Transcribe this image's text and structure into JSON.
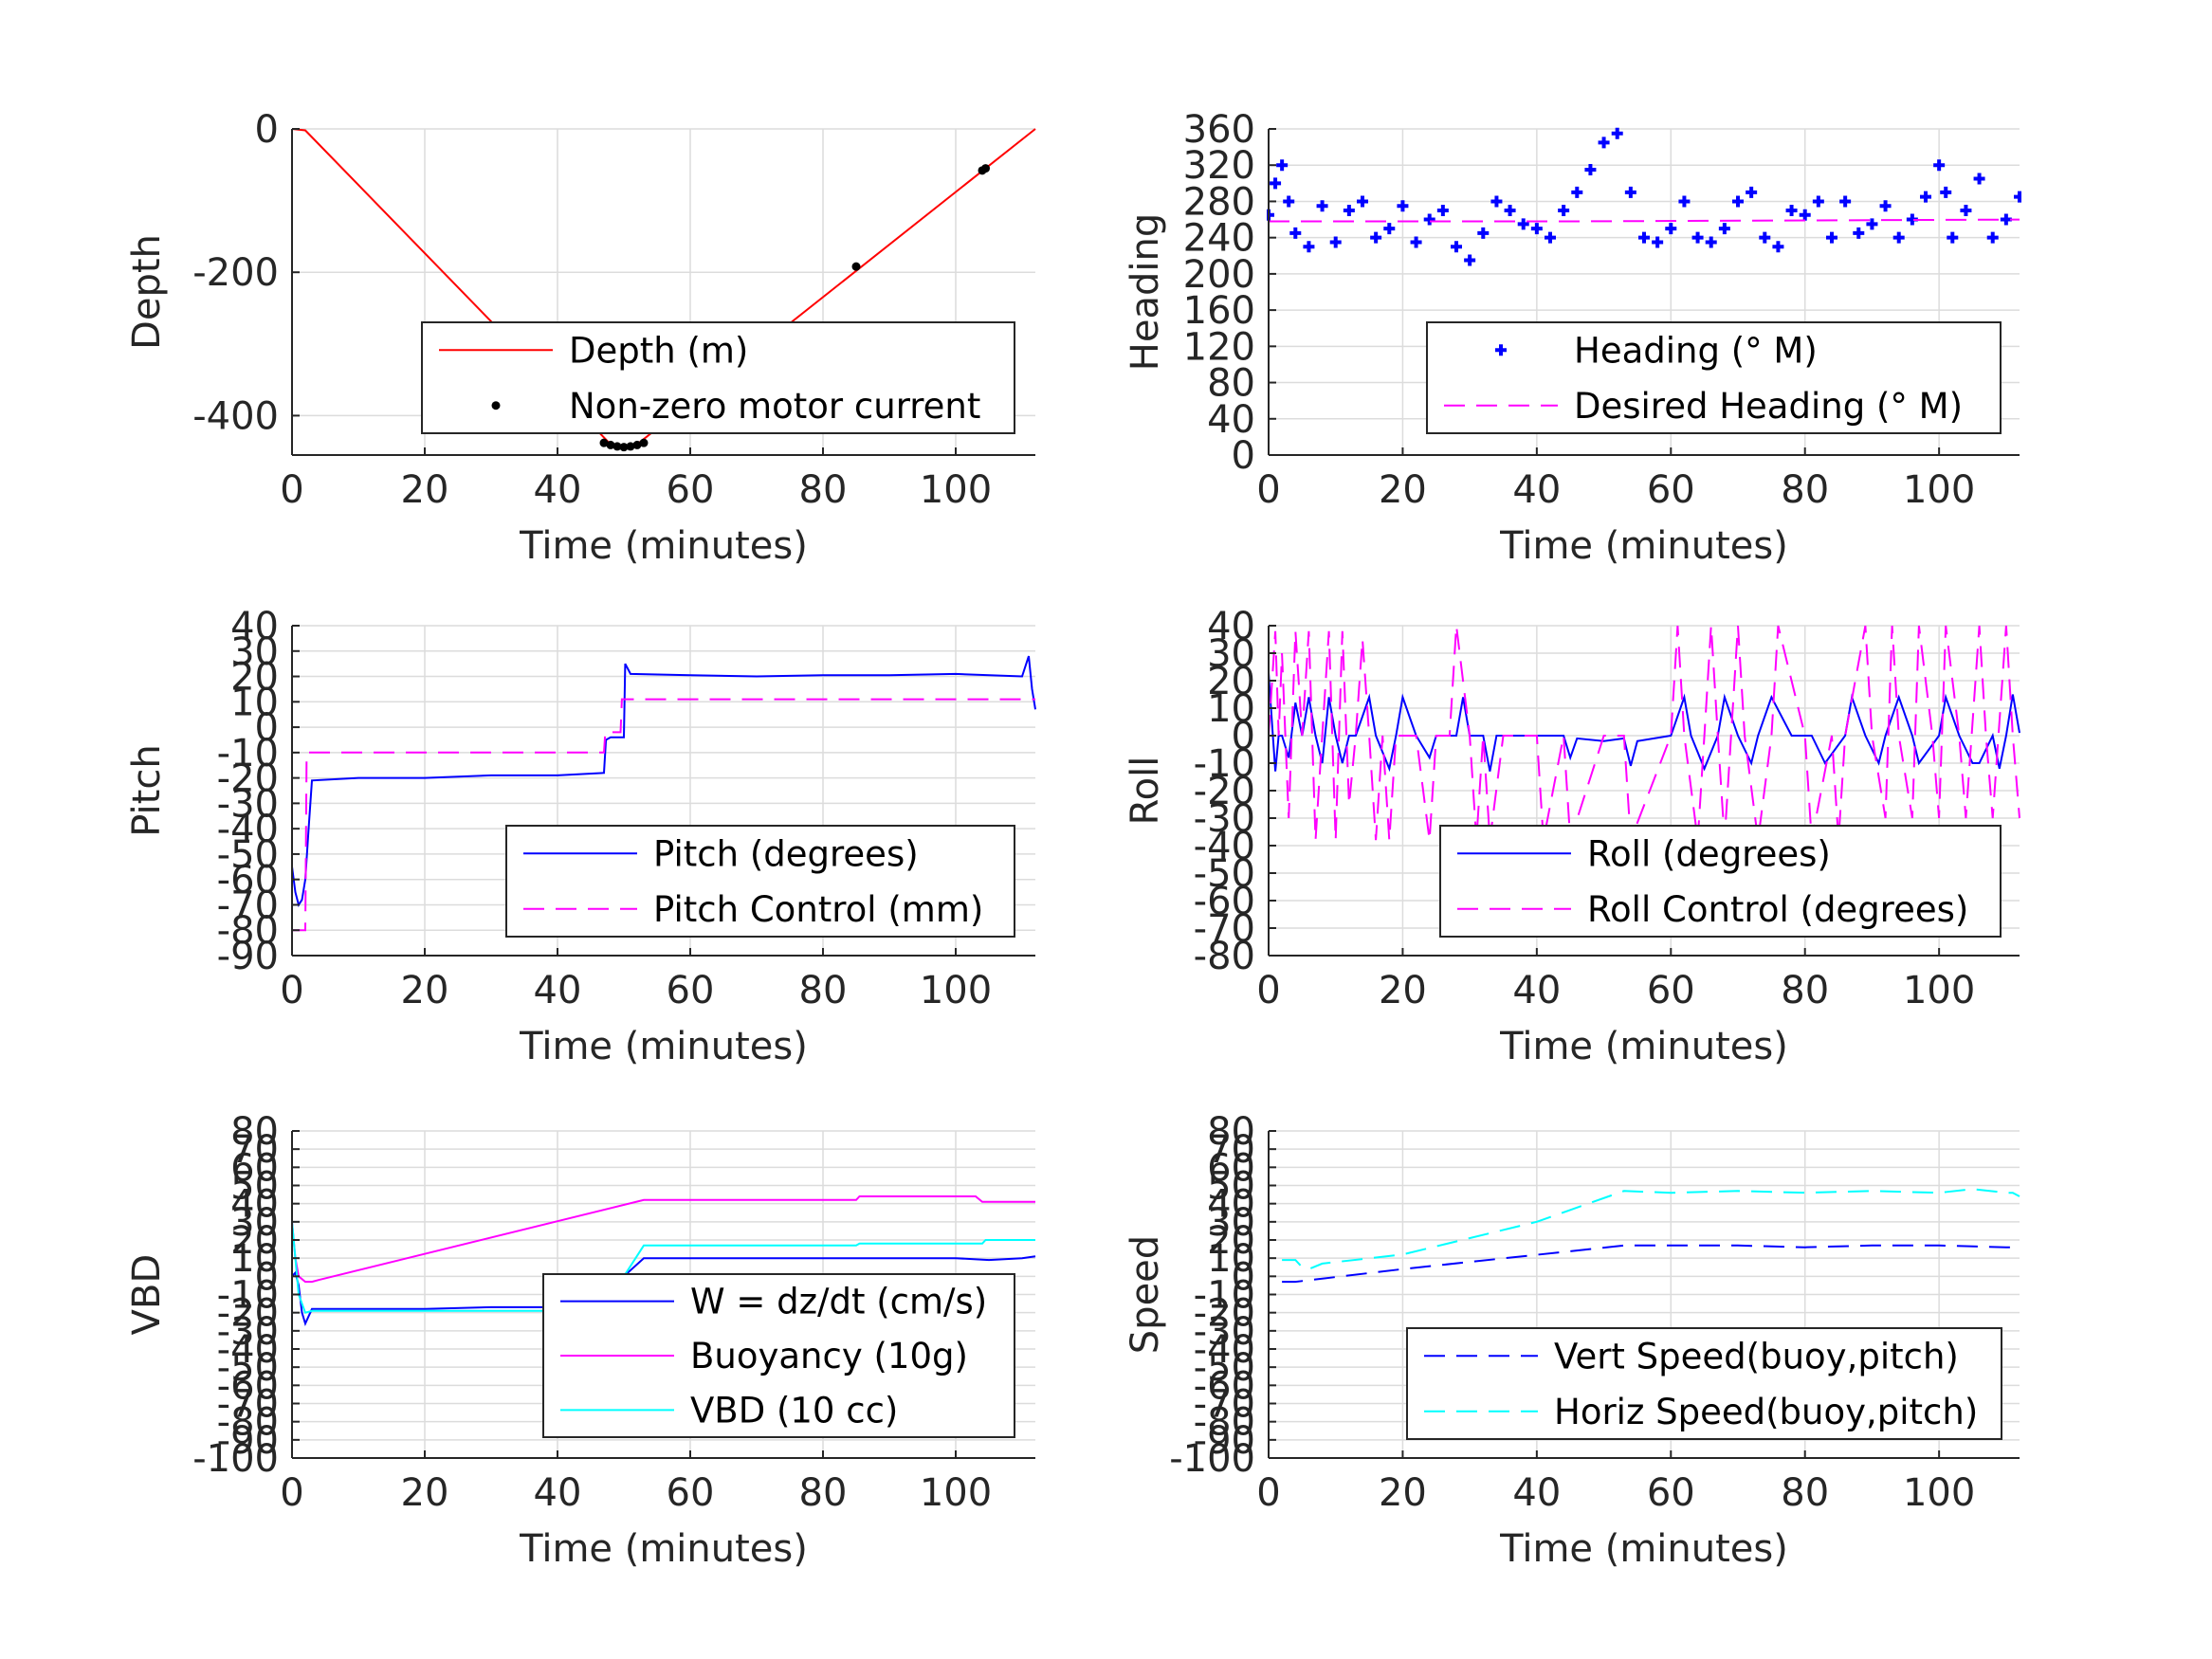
{
  "chart_data": [
    {
      "type": "line",
      "xlabel": "Time (minutes)",
      "ylabel": "Depth",
      "xlim": [
        0,
        112
      ],
      "ylim": [
        -455,
        0
      ],
      "xticks": [
        "0",
        "20",
        "40",
        "60",
        "80",
        "100"
      ],
      "yticks": [
        "0",
        "-200",
        "-400"
      ],
      "grid": true,
      "legend_position": "bottom-right",
      "series": [
        {
          "name": "Depth (m)",
          "style": "solid",
          "color": "#ff0000",
          "x": [
            0,
            2,
            48,
            50,
            52,
            112
          ],
          "y": [
            0,
            -2,
            -440,
            -443,
            -440,
            0
          ]
        },
        {
          "name": "Non-zero motor current",
          "style": "dot",
          "color": "#000000",
          "x": [
            47,
            48,
            49,
            50,
            51,
            52,
            53,
            85,
            104,
            104.5
          ],
          "y": [
            -438,
            -441,
            -443,
            -444,
            -443,
            -441,
            -438,
            -192,
            -58,
            -55
          ]
        }
      ]
    },
    {
      "type": "line",
      "xlabel": "Time (minutes)",
      "ylabel": "Heading",
      "xlim": [
        0,
        112
      ],
      "ylim": [
        0,
        360
      ],
      "xticks": [
        "0",
        "20",
        "40",
        "60",
        "80",
        "100"
      ],
      "yticks": [
        "0",
        "40",
        "80",
        "120",
        "160",
        "200",
        "240",
        "280",
        "320",
        "360"
      ],
      "grid": true,
      "legend_position": "bottom-right",
      "series": [
        {
          "name": "Heading (° M)",
          "style": "plus",
          "color": "#0000ff",
          "x": [
            0,
            1,
            2,
            3,
            4,
            6,
            8,
            10,
            12,
            14,
            16,
            18,
            20,
            22,
            24,
            26,
            28,
            30,
            32,
            34,
            36,
            38,
            40,
            42,
            44,
            46,
            48,
            50,
            52,
            54,
            56,
            58,
            60,
            62,
            64,
            66,
            68,
            70,
            72,
            74,
            76,
            78,
            80,
            82,
            84,
            86,
            88,
            90,
            92,
            94,
            96,
            98,
            100,
            101,
            102,
            104,
            106,
            108,
            110,
            112
          ],
          "y": [
            265,
            300,
            320,
            280,
            245,
            230,
            275,
            235,
            270,
            280,
            240,
            250,
            275,
            235,
            260,
            270,
            230,
            215,
            245,
            280,
            270,
            255,
            250,
            240,
            270,
            290,
            315,
            345,
            355,
            290,
            240,
            235,
            250,
            280,
            240,
            235,
            250,
            280,
            290,
            240,
            230,
            270,
            265,
            280,
            240,
            280,
            245,
            255,
            275,
            240,
            260,
            285,
            320,
            290,
            240,
            270,
            305,
            240,
            260,
            285
          ]
        },
        {
          "name": "Desired Heading (° M)",
          "style": "dashed",
          "color": "#ff00ff",
          "x": [
            0,
            45,
            112
          ],
          "y": [
            258,
            258,
            260
          ]
        }
      ]
    },
    {
      "type": "line",
      "xlabel": "Time (minutes)",
      "ylabel": "Pitch",
      "xlim": [
        0,
        112
      ],
      "ylim": [
        -90,
        40
      ],
      "xticks": [
        "0",
        "20",
        "40",
        "60",
        "80",
        "100"
      ],
      "yticks": [
        "-90",
        "-80",
        "-70",
        "-60",
        "-50",
        "-40",
        "-30",
        "-20",
        "-10",
        "0",
        "10",
        "20",
        "30",
        "40"
      ],
      "grid": true,
      "legend_position": "bottom-right",
      "series": [
        {
          "name": "Pitch (degrees)",
          "style": "solid",
          "color": "#0000ff",
          "x": [
            0,
            0.5,
            1,
            1.5,
            2,
            2.5,
            3,
            10,
            20,
            30,
            40,
            47,
            47.3,
            48,
            49,
            50,
            50.2,
            51,
            60,
            70,
            80,
            90,
            100,
            110,
            111,
            111.5,
            112
          ],
          "y": [
            -55,
            -65,
            -70,
            -68,
            -60,
            -40,
            -21,
            -20,
            -20,
            -19,
            -19,
            -18,
            -5,
            -4,
            -4,
            -4,
            25,
            21,
            20.5,
            20,
            20.5,
            20.5,
            21,
            20,
            28,
            15,
            7
          ]
        },
        {
          "name": "Pitch Control (mm)",
          "style": "dashed",
          "color": "#ff00ff",
          "x": [
            0,
            2,
            2.2,
            47,
            47.2,
            49.5,
            49.7,
            112
          ],
          "y": [
            -80,
            -80,
            -10,
            -10,
            -2,
            -2,
            11,
            11
          ]
        }
      ]
    },
    {
      "type": "line",
      "xlabel": "Time (minutes)",
      "ylabel": "Roll",
      "xlim": [
        0,
        112
      ],
      "ylim": [
        -80,
        40
      ],
      "xticks": [
        "0",
        "20",
        "40",
        "60",
        "80",
        "100"
      ],
      "yticks": [
        "-80",
        "-70",
        "-60",
        "-50",
        "-40",
        "-30",
        "-20",
        "-10",
        "0",
        "10",
        "20",
        "30",
        "40"
      ],
      "grid": true,
      "legend_position": "bottom-right",
      "series": [
        {
          "name": "Roll (degrees)",
          "style": "solid",
          "color": "#0000ff",
          "x": [
            0,
            0.5,
            1,
            1.5,
            2,
            3,
            4,
            5,
            6,
            7,
            8,
            9,
            10,
            11,
            12,
            13,
            15,
            16,
            18,
            19,
            20,
            22,
            24,
            25,
            28,
            29,
            30,
            32,
            33,
            34,
            40,
            44,
            45,
            46,
            50,
            53,
            54,
            55,
            60,
            62,
            63,
            65,
            67,
            68,
            70,
            72,
            73,
            75,
            78,
            80,
            81,
            83,
            86,
            87,
            89,
            91,
            92,
            94,
            96,
            97,
            100,
            101,
            103,
            105,
            106,
            108,
            109,
            110,
            111,
            112
          ],
          "y": [
            23,
            5,
            -13,
            0,
            0,
            -8,
            12,
            0,
            14,
            0,
            -10,
            14,
            0,
            -10,
            0,
            0,
            14,
            0,
            -12,
            0,
            14,
            0,
            -8,
            0,
            0,
            14,
            0,
            0,
            -13,
            0,
            0,
            0,
            -8,
            -1,
            -2,
            -1,
            -11,
            -2,
            0,
            14,
            0,
            -12,
            0,
            14,
            0,
            -10,
            0,
            14,
            0,
            0,
            0,
            -10,
            0,
            14,
            0,
            -10,
            0,
            14,
            0,
            -10,
            0,
            14,
            0,
            -10,
            -10,
            0,
            -12,
            0,
            15,
            1
          ]
        },
        {
          "name": "Roll Control (degrees)",
          "style": "dashed",
          "color": "#ff00ff",
          "x": [
            0,
            1,
            1.5,
            2,
            3,
            4,
            5,
            6,
            7,
            9,
            10,
            11,
            12,
            13,
            14,
            15,
            16,
            17,
            18,
            19,
            20,
            22,
            24,
            25,
            27,
            28,
            30,
            31,
            32,
            33,
            35,
            40,
            41,
            44,
            45,
            50,
            53,
            54,
            60,
            61,
            62,
            64,
            65,
            66,
            67,
            68,
            70,
            71,
            73,
            75,
            76,
            80,
            81,
            84,
            85,
            86,
            89,
            90,
            92,
            93,
            94,
            96,
            97,
            99,
            100,
            101,
            103,
            104,
            106,
            107,
            108,
            110,
            111,
            112
          ],
          "y": [
            0,
            38,
            0,
            30,
            -30,
            38,
            0,
            38,
            -38,
            38,
            -38,
            38,
            -25,
            0,
            35,
            0,
            -38,
            0,
            -38,
            0,
            0,
            0,
            -38,
            0,
            0,
            40,
            0,
            -38,
            0,
            -38,
            0,
            0,
            -38,
            0,
            -38,
            0,
            0,
            -38,
            0,
            40,
            0,
            -38,
            0,
            40,
            0,
            -38,
            40,
            0,
            -38,
            0,
            40,
            0,
            -38,
            0,
            -38,
            0,
            40,
            0,
            -30,
            40,
            0,
            -30,
            40,
            0,
            -30,
            40,
            0,
            -30,
            40,
            0,
            -30,
            40,
            0,
            -30
          ]
        }
      ]
    },
    {
      "type": "line",
      "xlabel": "Time (minutes)",
      "ylabel": "VBD",
      "xlim": [
        0,
        112
      ],
      "ylim": [
        -100,
        80
      ],
      "xticks": [
        "0",
        "20",
        "40",
        "60",
        "80",
        "100"
      ],
      "yticks": [
        "-100",
        "-90",
        "-80",
        "-70",
        "-60",
        "-50",
        "-40",
        "-30",
        "-20",
        "-10",
        "0",
        "10",
        "20",
        "30",
        "40",
        "50",
        "60",
        "70",
        "80"
      ],
      "grid": true,
      "legend_position": "bottom-right",
      "series": [
        {
          "name": "W = dz/dt (cm/s)",
          "style": "solid",
          "color": "#0000ff",
          "x": [
            0,
            0.5,
            1,
            1.5,
            2,
            3,
            10,
            20,
            30,
            40,
            46,
            47,
            50,
            53,
            60,
            70,
            80,
            90,
            100,
            105,
            110,
            112
          ],
          "y": [
            0,
            2,
            -5,
            -20,
            -26,
            -18,
            -18,
            -18,
            -17,
            -17,
            -17,
            -13,
            0,
            10,
            10,
            10,
            10,
            10,
            10,
            9,
            10,
            11
          ]
        },
        {
          "name": "Buoyancy (10g)",
          "style": "solid",
          "color": "#ff00ff",
          "x": [
            0,
            0.5,
            1,
            2,
            3,
            4,
            53,
            85,
            85.5,
            103,
            104,
            112
          ],
          "y": [
            30,
            10,
            0,
            -3,
            -3,
            -2,
            42,
            42,
            44,
            44,
            41,
            41
          ]
        },
        {
          "name": "VBD (10 cc)",
          "style": "solid",
          "color": "#00ffff",
          "x": [
            0,
            0.5,
            1,
            2,
            3,
            10,
            46,
            47,
            53,
            85,
            85.5,
            104,
            104.5,
            112
          ],
          "y": [
            30,
            10,
            -10,
            -20,
            -19,
            -19,
            -19,
            -17,
            17,
            17,
            18,
            18,
            20,
            20
          ]
        }
      ]
    },
    {
      "type": "line",
      "xlabel": "Time (minutes)",
      "ylabel": "Speed",
      "xlim": [
        0,
        112
      ],
      "ylim": [
        -100,
        80
      ],
      "xticks": [
        "0",
        "20",
        "40",
        "60",
        "80",
        "100"
      ],
      "yticks": [
        "-100",
        "-90",
        "-80",
        "-70",
        "-60",
        "-50",
        "-40",
        "-30",
        "-20",
        "-10",
        "0",
        "10",
        "20",
        "30",
        "40",
        "50",
        "60",
        "70",
        "80"
      ],
      "grid": true,
      "legend_position": "bottom-right",
      "series": [
        {
          "name": "Vert Speed(buoy,pitch)",
          "style": "dashed",
          "color": "#0000ff",
          "x": [
            2,
            4,
            20,
            53,
            60,
            70,
            80,
            90,
            100,
            110,
            112
          ],
          "y": [
            -3,
            -3,
            4,
            17,
            17,
            17,
            16,
            17,
            17,
            16,
            16
          ]
        },
        {
          "name": "Horiz Speed(buoy,pitch)",
          "style": "dashed",
          "color": "#00ffff",
          "x": [
            2,
            4,
            5,
            6,
            8,
            20,
            40,
            53,
            60,
            70,
            80,
            90,
            100,
            105,
            110,
            111,
            112
          ],
          "y": [
            9,
            9,
            5,
            4,
            7,
            12,
            30,
            47,
            46,
            47,
            46,
            47,
            46,
            48,
            46,
            46,
            44
          ]
        }
      ]
    }
  ]
}
